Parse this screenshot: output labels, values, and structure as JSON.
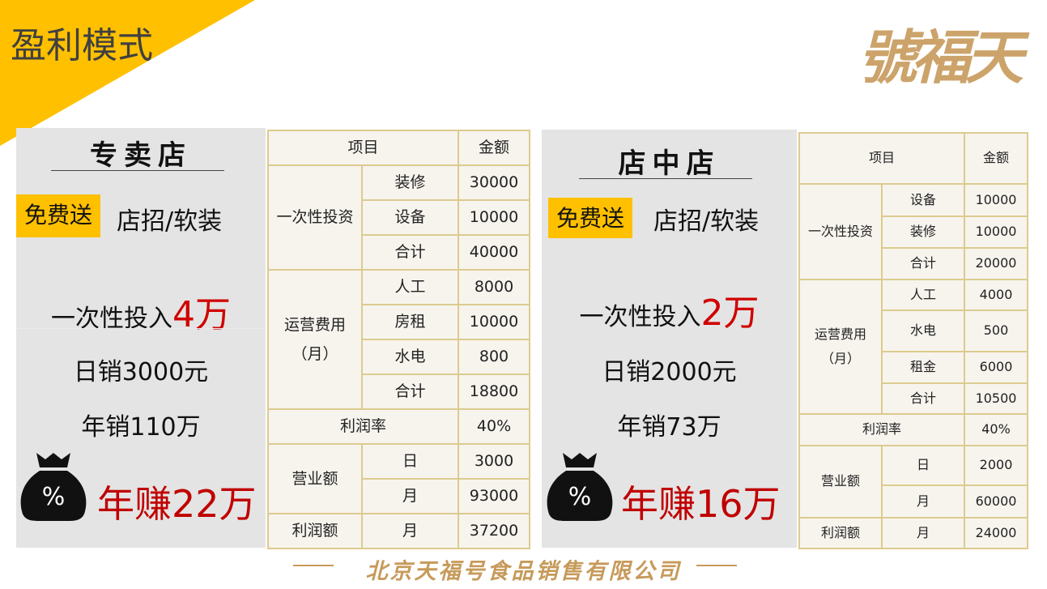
{
  "header": {
    "title": "盈利模式",
    "logo_text": "天福號"
  },
  "colors": {
    "accent": "#FFC000",
    "highlight_red": "#C00000",
    "table_border": "#DCCB8E",
    "gold": "#C79A5A"
  },
  "left": {
    "title": "专卖店",
    "free_label": "免费送",
    "free_items": "店招/软装",
    "invest_prefix": "一次性投入",
    "invest_value": "4万",
    "daily": "日销3000元",
    "yearly": "年销110万",
    "earn": "年赚22万",
    "icon": "money-bag-percent-icon"
  },
  "right": {
    "title": "店中店",
    "free_label": "免费送",
    "free_items": "店招/软装",
    "invest_prefix": "一次性投入",
    "invest_value": "2万",
    "daily": "日销2000元",
    "yearly": "年销73万",
    "earn": "年赚16万",
    "icon": "money-bag-percent-icon"
  },
  "tables": [
    {
      "rows": [
        [
          {
            "text": "项目",
            "colspan": 2
          },
          {
            "text": "金额"
          }
        ],
        [
          {
            "text": "一次性投资",
            "rowspan": 3
          },
          {
            "text": "装修"
          },
          {
            "text": "30000"
          }
        ],
        [
          {
            "text": "设备"
          },
          {
            "text": "10000"
          }
        ],
        [
          {
            "text": "合计"
          },
          {
            "text": "40000"
          }
        ],
        [
          {
            "text": "运营费用\n（月）",
            "rowspan": 4
          },
          {
            "text": "人工"
          },
          {
            "text": "8000"
          }
        ],
        [
          {
            "text": "房租"
          },
          {
            "text": "10000"
          }
        ],
        [
          {
            "text": "水电"
          },
          {
            "text": "800"
          }
        ],
        [
          {
            "text": "合计"
          },
          {
            "text": "18800"
          }
        ],
        [
          {
            "text": "利润率",
            "colspan": 2
          },
          {
            "text": "40%"
          }
        ],
        [
          {
            "text": "营业额",
            "rowspan": 2
          },
          {
            "text": "日"
          },
          {
            "text": "3000"
          }
        ],
        [
          {
            "text": "月"
          },
          {
            "text": "93000"
          }
        ],
        [
          {
            "text": "利润额"
          },
          {
            "text": "月"
          },
          {
            "text": "37200"
          }
        ]
      ]
    },
    {
      "rows": [
        [
          {
            "text": "项目",
            "colspan": 2
          },
          {
            "text": "金额"
          }
        ],
        [
          {
            "text": "一次性投资",
            "rowspan": 3
          },
          {
            "text": "设备"
          },
          {
            "text": "10000"
          }
        ],
        [
          {
            "text": "装修"
          },
          {
            "text": "10000"
          }
        ],
        [
          {
            "text": "合计"
          },
          {
            "text": "20000"
          }
        ],
        [
          {
            "text": "运营费用\n（月）",
            "rowspan": 4
          },
          {
            "text": "人工"
          },
          {
            "text": "4000"
          }
        ],
        [
          {
            "text": "水电"
          },
          {
            "text": "500"
          }
        ],
        [
          {
            "text": "租金"
          },
          {
            "text": "6000"
          }
        ],
        [
          {
            "text": "合计"
          },
          {
            "text": "10500"
          }
        ],
        [
          {
            "text": "利润率",
            "colspan": 2
          },
          {
            "text": "40%"
          }
        ],
        [
          {
            "text": "营业额",
            "rowspan": 2
          },
          {
            "text": "日"
          },
          {
            "text": "2000"
          }
        ],
        [
          {
            "text": "月"
          },
          {
            "text": "60000"
          }
        ],
        [
          {
            "text": "利润额"
          },
          {
            "text": "月"
          },
          {
            "text": "24000"
          }
        ]
      ]
    }
  ],
  "footer": {
    "company": "北京天福号食品销售有限公司"
  }
}
